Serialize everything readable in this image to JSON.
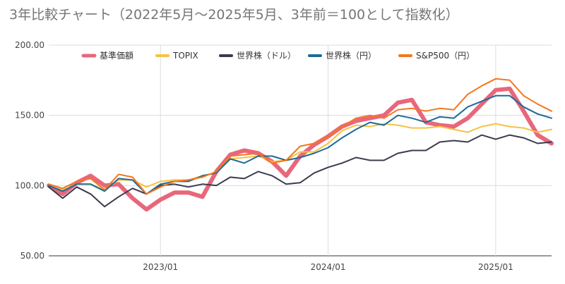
{
  "chart_data": {
    "type": "line",
    "title": "3年比較チャート（2022年5月〜2025年5月、3年前＝100として指数化）",
    "ylim": [
      50,
      200
    ],
    "y_ticks": [
      "200.00",
      "150.00",
      "100.00",
      "50.00"
    ],
    "x_ticks": [
      "2023/01",
      "2024/01",
      "2025/01"
    ],
    "x": [
      "2022/05",
      "2022/06",
      "2022/07",
      "2022/08",
      "2022/09",
      "2022/10",
      "2022/11",
      "2022/12",
      "2023/01",
      "2023/02",
      "2023/03",
      "2023/04",
      "2023/05",
      "2023/06",
      "2023/07",
      "2023/08",
      "2023/09",
      "2023/10",
      "2023/11",
      "2023/12",
      "2024/01",
      "2024/02",
      "2024/03",
      "2024/04",
      "2024/05",
      "2024/06",
      "2024/07",
      "2024/08",
      "2024/09",
      "2024/10",
      "2024/11",
      "2024/12",
      "2025/01",
      "2025/02",
      "2025/03",
      "2025/04",
      "2025/05"
    ],
    "legend_position": "top",
    "grid": "vertical",
    "series": [
      {
        "name": "基準価額",
        "color": "#e8677b",
        "width": 6,
        "values": [
          100,
          94,
          102,
          107,
          100,
          101,
          91,
          83,
          90,
          95,
          95,
          92,
          110,
          122,
          125,
          123,
          117,
          107,
          121,
          129,
          135,
          142,
          146,
          148,
          150,
          159,
          161,
          145,
          143,
          142,
          148,
          158,
          168,
          169,
          153,
          136,
          130
        ]
      },
      {
        "name": "TOPIX",
        "color": "#f6c242",
        "width": 2,
        "values": [
          100,
          97,
          101,
          101,
          97,
          104,
          104,
          99,
          103,
          104,
          104,
          107,
          109,
          119,
          120,
          121,
          117,
          118,
          124,
          124,
          130,
          139,
          143,
          142,
          144,
          143,
          141,
          141,
          142,
          140,
          138,
          142,
          144,
          142,
          141,
          138,
          140
        ]
      },
      {
        "name": "世界株（ドル）",
        "color": "#3e3a4d",
        "width": 2,
        "values": [
          99,
          91,
          99,
          94,
          85,
          92,
          98,
          94,
          100,
          101,
          99,
          101,
          100,
          106,
          105,
          110,
          107,
          101,
          102,
          109,
          113,
          116,
          120,
          118,
          118,
          123,
          125,
          125,
          131,
          132,
          131,
          136,
          133,
          136,
          134,
          130,
          131
        ]
      },
      {
        "name": "世界株（円）",
        "color": "#1c6b97",
        "width": 2,
        "values": [
          100,
          96,
          101,
          101,
          96,
          105,
          104,
          94,
          101,
          103,
          103,
          107,
          109,
          119,
          116,
          121,
          121,
          118,
          120,
          123,
          127,
          134,
          140,
          145,
          143,
          150,
          148,
          145,
          149,
          148,
          156,
          160,
          164,
          164,
          156,
          151,
          148
        ]
      },
      {
        "name": "S&P500（円）",
        "color": "#f5761e",
        "width": 2,
        "values": [
          101,
          98,
          103,
          105,
          97,
          108,
          106,
          94,
          99,
          103,
          104,
          106,
          110,
          121,
          122,
          123,
          116,
          118,
          128,
          130,
          135,
          142,
          148,
          150,
          148,
          154,
          155,
          153,
          155,
          154,
          165,
          171,
          176,
          175,
          164,
          158,
          153
        ]
      }
    ]
  }
}
